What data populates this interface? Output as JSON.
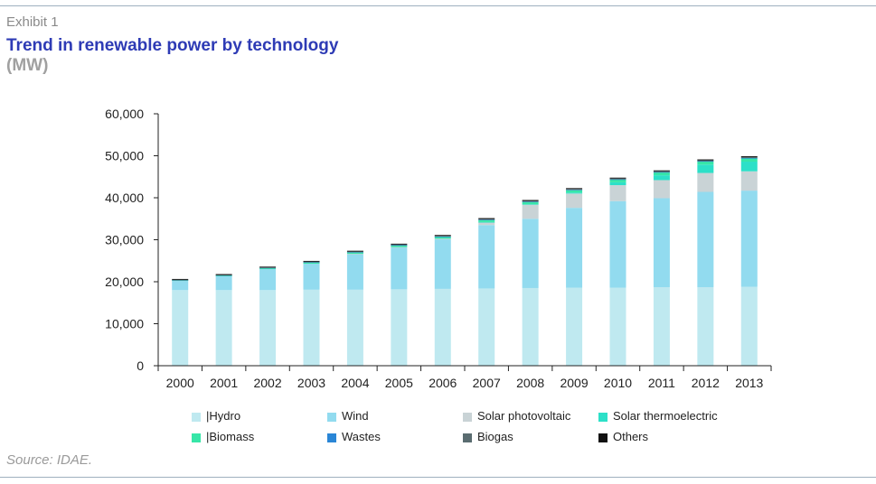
{
  "header": {
    "exhibit": "Exhibit 1",
    "title": "Trend in renewable power by technology",
    "units": "(MW)"
  },
  "footer": {
    "source": "Source: IDAE."
  },
  "colors": {
    "Hydro": "#bfe9f0",
    "Wind": "#92dbef",
    "Solar photovoltaic": "#c9d3d6",
    "Solar thermoelectric": "#2de0c8",
    "Biomass": "#37e6a8",
    "Wastes": "#2a86d6",
    "Biogas": "#5a6c70",
    "Others": "#111111",
    "axis": "#222222"
  },
  "chart_data": {
    "type": "bar",
    "stacked": true,
    "categories": [
      "2000",
      "2001",
      "2002",
      "2003",
      "2004",
      "2005",
      "2006",
      "2007",
      "2008",
      "2009",
      "2010",
      "2011",
      "2012",
      "2013"
    ],
    "y_ticks": [
      "0",
      "10,000",
      "20,000",
      "30,000",
      "40,000",
      "50,000",
      "60,000"
    ],
    "ylim": [
      0,
      60000
    ],
    "series": [
      {
        "name": "Hydro",
        "values": [
          18000,
          18000,
          18000,
          18100,
          18100,
          18200,
          18300,
          18400,
          18500,
          18600,
          18600,
          18700,
          18700,
          18800
        ]
      },
      {
        "name": "Wind",
        "values": [
          2200,
          3300,
          5000,
          6200,
          8500,
          10000,
          11800,
          15100,
          16500,
          19000,
          20600,
          21200,
          22700,
          22900
        ]
      },
      {
        "name": "Solar photovoltaic",
        "values": [
          0,
          0,
          0,
          0,
          50,
          50,
          150,
          700,
          3400,
          3400,
          3800,
          4300,
          4500,
          4600
        ]
      },
      {
        "name": "Solar thermoelectric",
        "values": [
          0,
          0,
          0,
          0,
          0,
          0,
          0,
          10,
          60,
          230,
          680,
          1150,
          2000,
          2300
        ]
      },
      {
        "name": "Biomass",
        "values": [
          150,
          200,
          250,
          300,
          350,
          400,
          450,
          500,
          550,
          600,
          650,
          700,
          750,
          800
        ]
      },
      {
        "name": "Wastes",
        "values": [
          50,
          50,
          60,
          60,
          60,
          60,
          60,
          60,
          60,
          60,
          60,
          60,
          60,
          60
        ]
      },
      {
        "name": "Biogas",
        "values": [
          60,
          70,
          80,
          100,
          120,
          150,
          170,
          180,
          190,
          200,
          200,
          210,
          220,
          220
        ]
      },
      {
        "name": "Others",
        "values": [
          200,
          200,
          200,
          200,
          200,
          200,
          200,
          200,
          200,
          200,
          200,
          200,
          200,
          200
        ]
      }
    ],
    "legend_labels": [
      "|Hydro",
      "Wind",
      "Solar photovoltaic",
      "Solar thermoelectric",
      "|Biomass",
      "Wastes",
      "Biogas",
      "Others"
    ],
    "legend_position": "bottom"
  }
}
